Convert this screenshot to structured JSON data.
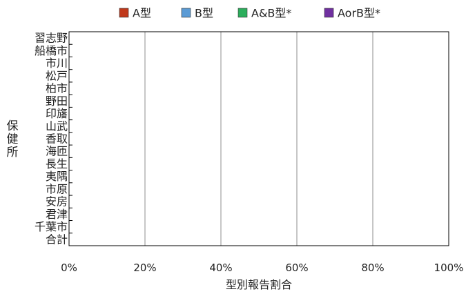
{
  "chart_data": {
    "type": "bar",
    "orientation": "horizontal",
    "stacked": true,
    "categories": [
      "習志野",
      "船橋市",
      "市川",
      "松戸",
      "柏市",
      "野田",
      "印旛",
      "山武",
      "香取",
      "海匝",
      "長生",
      "夷隅",
      "市原",
      "安房",
      "君津",
      "千葉市",
      "合計"
    ],
    "series": [
      {
        "name": "A型",
        "color": "#c0391b",
        "values": [
          0,
          0,
          0,
          0,
          0,
          0,
          0,
          0,
          0,
          0,
          0,
          0,
          0,
          0,
          0,
          0,
          0
        ]
      },
      {
        "name": "B型",
        "color": "#5b9bd5",
        "values": [
          0,
          0,
          0,
          0,
          0,
          0,
          0,
          0,
          0,
          0,
          0,
          0,
          0,
          0,
          0,
          0,
          0
        ]
      },
      {
        "name": "A&B型*",
        "color": "#2cae5c",
        "values": [
          0,
          0,
          0,
          0,
          0,
          0,
          0,
          0,
          0,
          0,
          0,
          0,
          0,
          0,
          0,
          0,
          0
        ]
      },
      {
        "name": "AorB型*",
        "color": "#7030a0",
        "values": [
          0,
          0,
          0,
          0,
          0,
          0,
          0,
          0,
          0,
          0,
          0,
          0,
          0,
          0,
          0,
          0,
          0
        ]
      }
    ],
    "xlabel": "型別報告割合",
    "ylabel": "保健所",
    "xlim": [
      0,
      1
    ],
    "xticks": [
      "0%",
      "20%",
      "40%",
      "60%",
      "80%",
      "100%"
    ],
    "grid": "vertical",
    "legend": "top"
  }
}
